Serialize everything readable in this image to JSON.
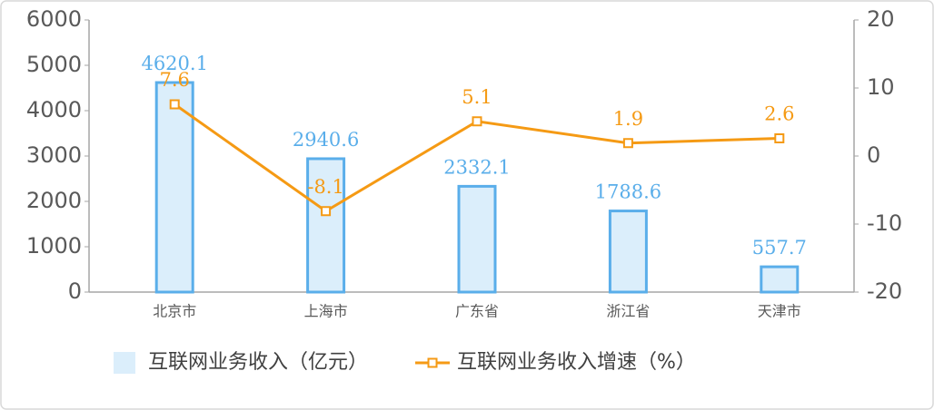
{
  "chart_data": {
    "type": "bar",
    "categories": [
      "北京市",
      "上海市",
      "广东省",
      "浙江省",
      "天津市"
    ],
    "series": [
      {
        "name": "互联网业务收入（亿元）",
        "type": "bar",
        "color": "#5aaeea",
        "fill": "#dbeefb",
        "values": [
          4620.1,
          2940.6,
          2332.1,
          1788.6,
          557.7
        ]
      },
      {
        "name": "互联网业务收入增速（%）",
        "type": "line",
        "axis": "y2",
        "color": "#f59a14",
        "values": [
          7.6,
          -8.1,
          5.1,
          1.9,
          2.6
        ]
      }
    ],
    "ylim": [
      0,
      6000
    ],
    "yticks": [
      0,
      1000,
      2000,
      3000,
      4000,
      5000,
      6000
    ],
    "y2lim": [
      -20,
      20
    ],
    "y2ticks": [
      -20,
      -10,
      0,
      10,
      20
    ],
    "legend": "bottom"
  }
}
